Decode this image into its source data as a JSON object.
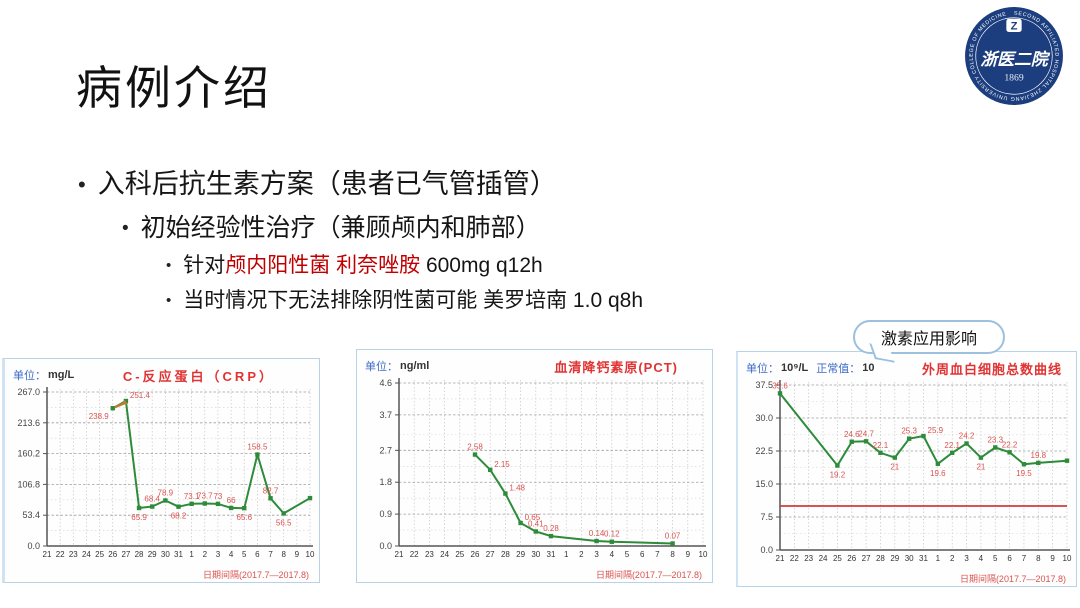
{
  "slide": {
    "title": "病例介绍",
    "bullets": [
      {
        "level": 1,
        "runs": [
          {
            "text": "入科后抗生素方案（患者已气管插管）"
          }
        ]
      },
      {
        "level": 2,
        "runs": [
          {
            "text": "初始经验性治疗（兼顾颅内和肺部）"
          }
        ]
      },
      {
        "level": 3,
        "runs": [
          {
            "text": "针对"
          },
          {
            "text": "颅内阳性菌 利奈唑胺",
            "color": "#c00000"
          },
          {
            "text": " 600mg q12h"
          }
        ]
      },
      {
        "level": 3,
        "runs": [
          {
            "text": "当时情况下无法排除阴性菌可能 美罗培南 1.0 q8h"
          }
        ]
      }
    ],
    "callout": "激素应用影响"
  },
  "logo": {
    "name": "浙医二院",
    "year": "1869",
    "monogram": "Z",
    "ring_text": "SECOND AFFILIATED HOSPITAL ZHEJIANG UNIVERSITY COLLEGE OF MEDICINE"
  },
  "colors": {
    "line_green": "#2e8b3a",
    "label_red": "#d9534f",
    "title_red": "#e03434",
    "unit_blue": "#3b6bc7",
    "ref_line_red": "#d23b3b",
    "logo_navy": "#1c3e7e"
  },
  "chart_data": [
    {
      "type": "line",
      "unit_label": "单位：",
      "unit": "mg/L",
      "title": "C-反应蛋白（CRP）",
      "xlabel": "日期间隔(2017.7—2017.8)",
      "ylim": [
        0,
        267.0
      ],
      "yticks": [
        0.0,
        53.4,
        106.8,
        160.2,
        213.6,
        267.0
      ],
      "ytick_labels": [
        "0.0",
        "53.4",
        "106.8",
        "160.2",
        "213.6",
        "267.0"
      ],
      "categories": [
        "21",
        "22",
        "23",
        "24",
        "25",
        "26",
        "27",
        "28",
        "29",
        "30",
        "31",
        "1",
        "2",
        "3",
        "4",
        "5",
        "6",
        "7",
        "8",
        "9",
        "10"
      ],
      "grid": true,
      "legend": "none",
      "line_color": "#2e8b3a",
      "label_color": "#d9534f",
      "annotation_arrow": {
        "x1": "26",
        "y1": 238.9,
        "x2": "27",
        "y2": 251.4,
        "color": "#c07a30"
      },
      "series": [
        {
          "name": "CRP",
          "points": [
            {
              "x": "26",
              "y": 238.9,
              "label": "238.9",
              "label_pos": "below-left"
            },
            {
              "x": "27",
              "y": 251.4,
              "label": "251.4",
              "label_pos": "above-right"
            },
            {
              "x": "28",
              "y": 65.9,
              "label": "65.9",
              "label_pos": "below"
            },
            {
              "x": "29",
              "y": 68.4,
              "label": "68.4",
              "label_pos": "above"
            },
            {
              "x": "30",
              "y": 78.9,
              "label": "78.9",
              "label_pos": "above"
            },
            {
              "x": "31",
              "y": 68.2,
              "label": "68.2",
              "label_pos": "below"
            },
            {
              "x": "1",
              "y": 73.1,
              "label": "73.1",
              "label_pos": "above"
            },
            {
              "x": "2",
              "y": 73.7,
              "label": "73.7",
              "label_pos": "above"
            },
            {
              "x": "3",
              "y": 73,
              "label": "73",
              "label_pos": "above"
            },
            {
              "x": "4",
              "y": 66,
              "label": "66",
              "label_pos": "above"
            },
            {
              "x": "5",
              "y": 65.6,
              "label": "65.6",
              "label_pos": "below"
            },
            {
              "x": "6",
              "y": 158.5,
              "label": "158.5",
              "label_pos": "above"
            },
            {
              "x": "7",
              "y": 82.7,
              "label": "82.7",
              "label_pos": "above"
            },
            {
              "x": "8",
              "y": 56.5,
              "label": "56.5",
              "label_pos": "below"
            },
            {
              "x": "10",
              "y": 83,
              "label": "",
              "label_pos": "above"
            }
          ]
        }
      ]
    },
    {
      "type": "line",
      "unit_label": "单位：",
      "unit": "ng/ml",
      "title": "血清降钙素原(PCT)",
      "xlabel": "日期间隔(2017.7—2017.8)",
      "ylim": [
        0,
        4.6
      ],
      "yticks": [
        0.0,
        0.9,
        1.8,
        2.7,
        3.7,
        4.6
      ],
      "ytick_labels": [
        "0.0",
        "0.9",
        "1.8",
        "2.7",
        "3.7",
        "4.6"
      ],
      "categories": [
        "21",
        "22",
        "23",
        "24",
        "25",
        "26",
        "27",
        "28",
        "29",
        "30",
        "31",
        "1",
        "2",
        "3",
        "4",
        "5",
        "6",
        "7",
        "8",
        "9",
        "10"
      ],
      "grid": true,
      "legend": "none",
      "line_color": "#2e8b3a",
      "label_color": "#d9534f",
      "series": [
        {
          "name": "PCT",
          "points": [
            {
              "x": "26",
              "y": 2.58,
              "label": "2.58",
              "label_pos": "above"
            },
            {
              "x": "27",
              "y": 2.15,
              "label": "2.15",
              "label_pos": "above-right"
            },
            {
              "x": "28",
              "y": 1.48,
              "label": "1.48",
              "label_pos": "above-right"
            },
            {
              "x": "29",
              "y": 0.65,
              "label": "0.65",
              "label_pos": "above-right"
            },
            {
              "x": "30",
              "y": 0.41,
              "label": "0.41",
              "label_pos": "above"
            },
            {
              "x": "31",
              "y": 0.28,
              "label": "0.28",
              "label_pos": "above"
            },
            {
              "x": "3",
              "y": 0.14,
              "label": "0.14",
              "label_pos": "above"
            },
            {
              "x": "4",
              "y": 0.12,
              "label": "0.12",
              "label_pos": "above"
            },
            {
              "x": "8",
              "y": 0.07,
              "label": "0.07",
              "label_pos": "above"
            }
          ]
        }
      ]
    },
    {
      "type": "line",
      "unit_label": "单位：",
      "unit": "10⁹/L",
      "normal_label": "正常值：",
      "normal_value": "10",
      "normal_line": 10,
      "title": "外周血白细胞总数曲线",
      "xlabel": "日期间隔(2017.7—2017.8)",
      "ylim": [
        0,
        37.5
      ],
      "yticks": [
        0.0,
        7.5,
        15.0,
        22.5,
        30.0,
        37.5
      ],
      "ytick_labels": [
        "0.0",
        "7.5",
        "15.0",
        "22.5",
        "30.0",
        "37.5"
      ],
      "categories": [
        "21",
        "22",
        "23",
        "24",
        "25",
        "26",
        "27",
        "28",
        "29",
        "30",
        "31",
        "1",
        "2",
        "3",
        "4",
        "5",
        "6",
        "7",
        "8",
        "9",
        "10"
      ],
      "grid": true,
      "legend": "none",
      "line_color": "#2e8b3a",
      "label_color": "#d9534f",
      "ref_color": "#d23b3b",
      "series": [
        {
          "name": "WBC",
          "points": [
            {
              "x": "21",
              "y": 35.6,
              "label": "35.6",
              "label_pos": "above"
            },
            {
              "x": "25",
              "y": 19.2,
              "label": "19.2",
              "label_pos": "below"
            },
            {
              "x": "26",
              "y": 24.6,
              "label": "24.6",
              "label_pos": "above"
            },
            {
              "x": "27",
              "y": 24.7,
              "label": "24.7",
              "label_pos": "above"
            },
            {
              "x": "28",
              "y": 22.1,
              "label": "22.1",
              "label_pos": "above"
            },
            {
              "x": "29",
              "y": 21,
              "label": "21",
              "label_pos": "below"
            },
            {
              "x": "30",
              "y": 25.3,
              "label": "25.3",
              "label_pos": "above"
            },
            {
              "x": "31",
              "y": 25.9,
              "label": "25.9",
              "label_pos": "above-right"
            },
            {
              "x": "1",
              "y": 19.6,
              "label": "19.6",
              "label_pos": "below"
            },
            {
              "x": "2",
              "y": 22.1,
              "label": "22.1",
              "label_pos": "above"
            },
            {
              "x": "3",
              "y": 24.2,
              "label": "24.2",
              "label_pos": "above"
            },
            {
              "x": "4",
              "y": 21,
              "label": "21",
              "label_pos": "below"
            },
            {
              "x": "5",
              "y": 23.3,
              "label": "23.3",
              "label_pos": "above"
            },
            {
              "x": "6",
              "y": 22.2,
              "label": "22.2",
              "label_pos": "above"
            },
            {
              "x": "7",
              "y": 19.5,
              "label": "19.5",
              "label_pos": "below"
            },
            {
              "x": "8",
              "y": 19.8,
              "label": "19.8",
              "label_pos": "above"
            },
            {
              "x": "10",
              "y": 20.3,
              "label": "",
              "label_pos": "above"
            }
          ]
        }
      ]
    }
  ]
}
